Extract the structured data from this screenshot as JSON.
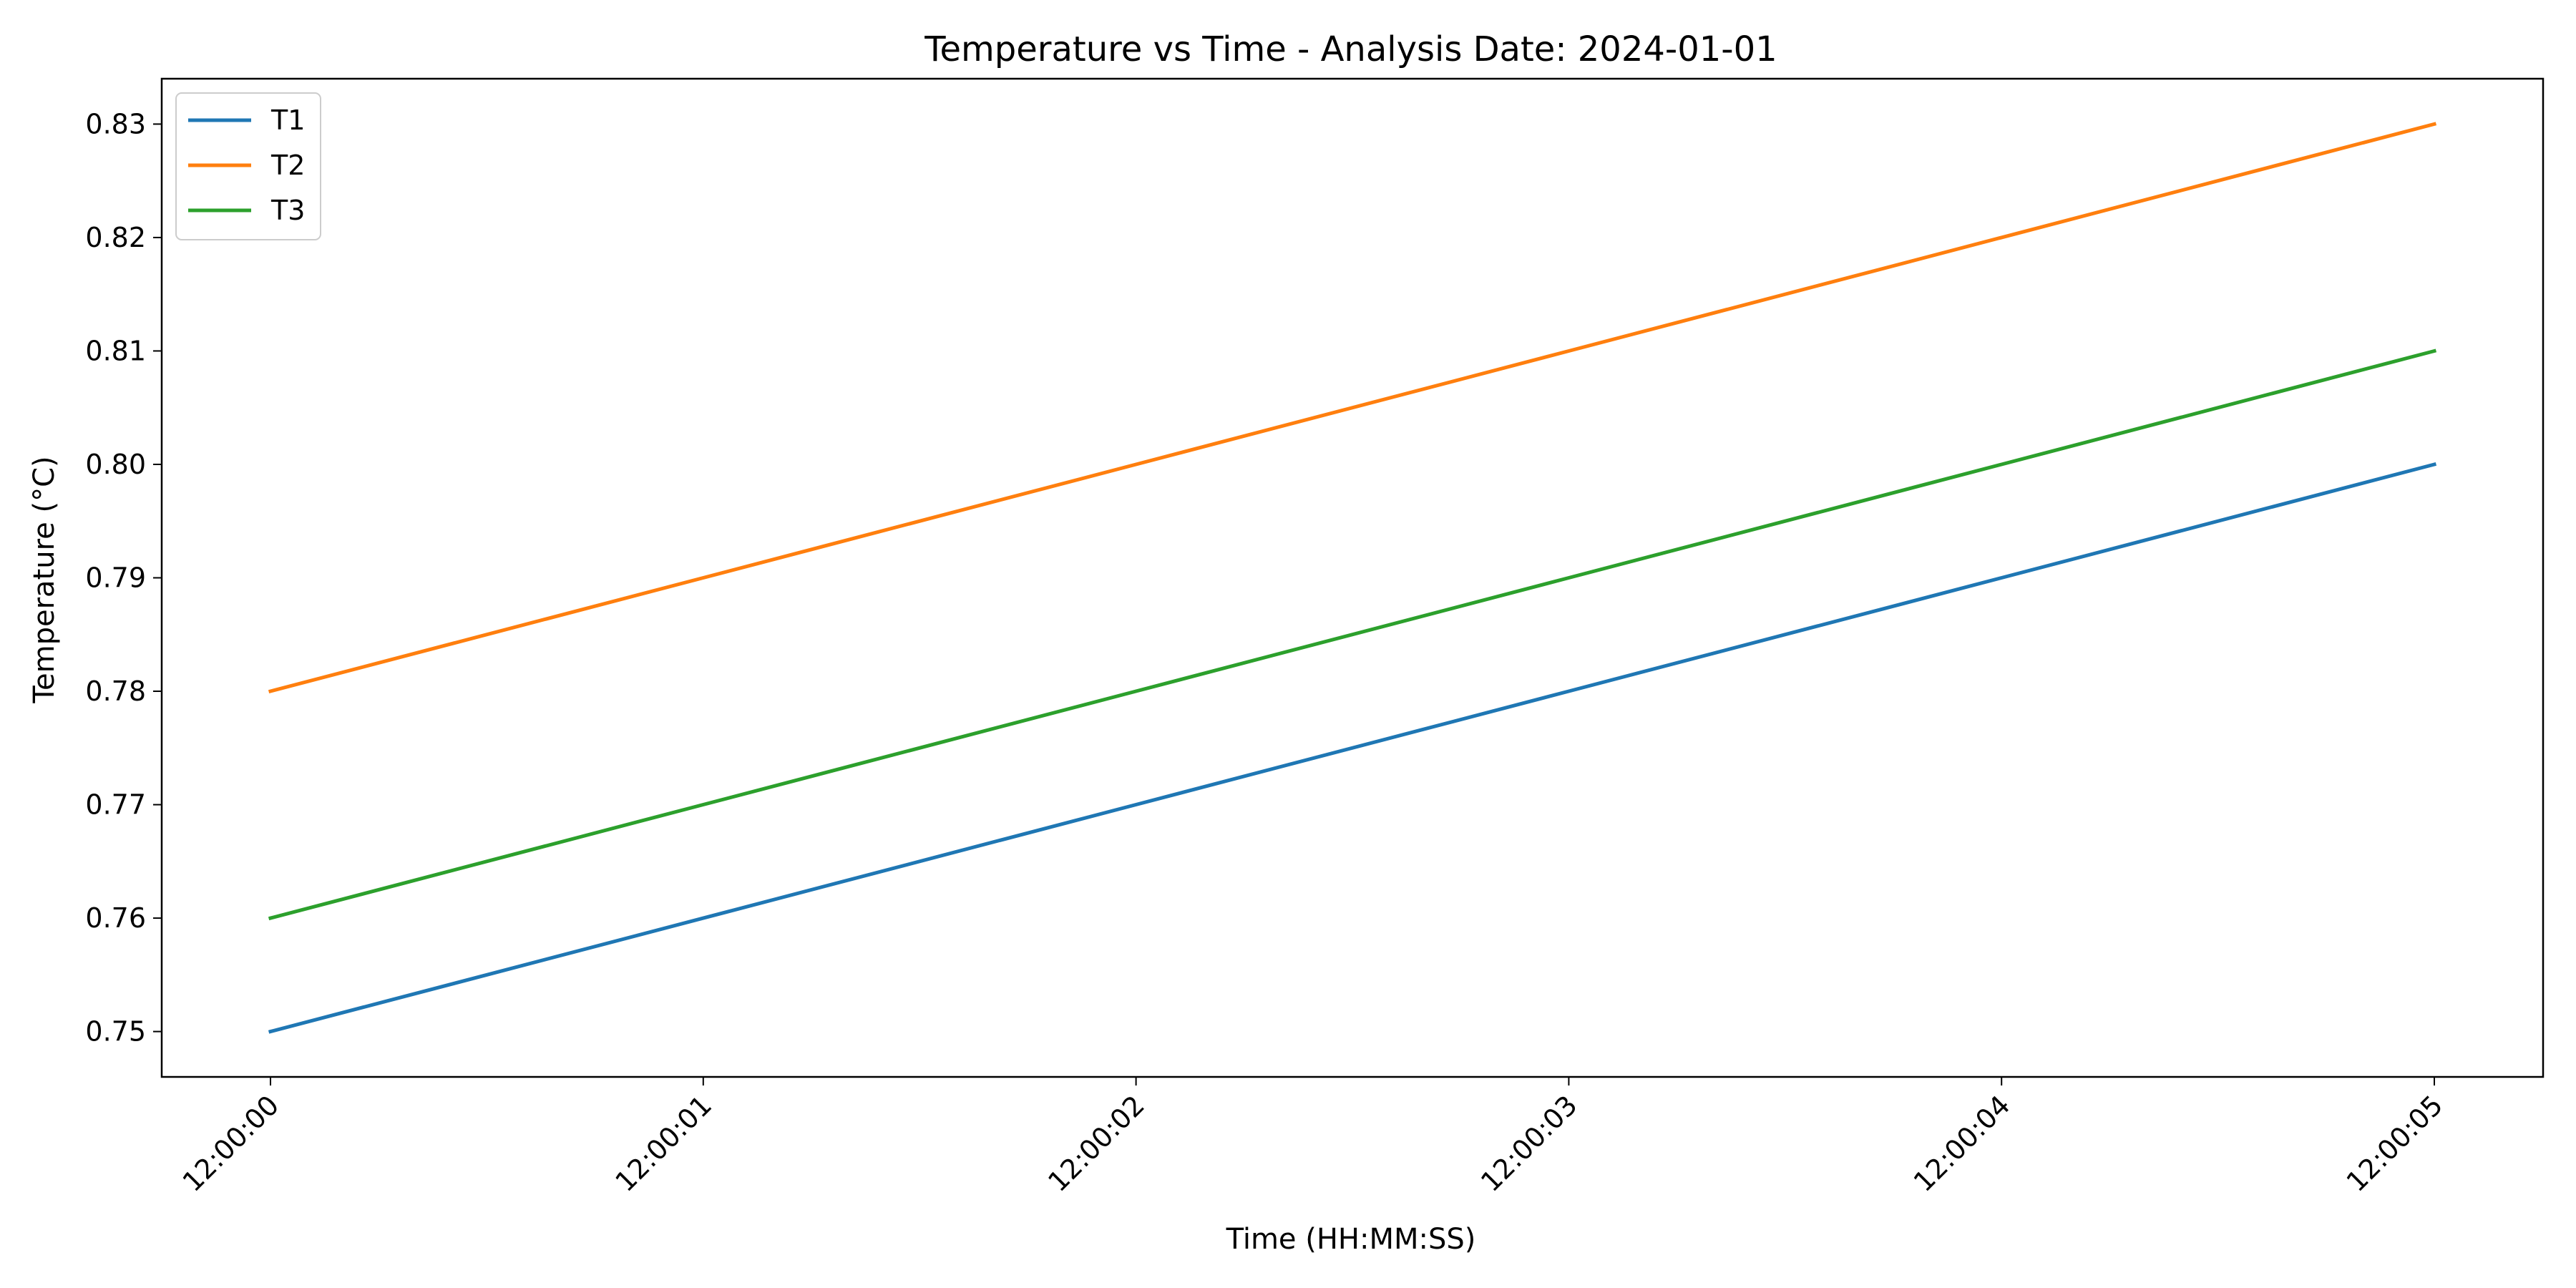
{
  "chart_data": {
    "type": "line",
    "title": "Temperature vs Time - Analysis Date: 2024-01-01",
    "xlabel": "Time (HH:MM:SS)",
    "ylabel": "Temperature (°C)",
    "x": [
      "12:00:00",
      "12:00:01",
      "12:00:02",
      "12:00:03",
      "12:00:04",
      "12:00:05"
    ],
    "series": [
      {
        "name": "T1",
        "color": "#1f77b4",
        "values": [
          0.75,
          0.76,
          0.77,
          0.78,
          0.79,
          0.8
        ]
      },
      {
        "name": "T2",
        "color": "#ff7f0e",
        "values": [
          0.78,
          0.79,
          0.8,
          0.81,
          0.82,
          0.83
        ]
      },
      {
        "name": "T3",
        "color": "#2ca02c",
        "values": [
          0.76,
          0.77,
          0.78,
          0.79,
          0.8,
          0.81
        ]
      }
    ],
    "ylim": [
      0.746,
      0.834
    ],
    "yticks": [
      "0.75",
      "0.76",
      "0.77",
      "0.78",
      "0.79",
      "0.80",
      "0.81",
      "0.82",
      "0.83"
    ],
    "grid": false,
    "legend": "top-left"
  }
}
